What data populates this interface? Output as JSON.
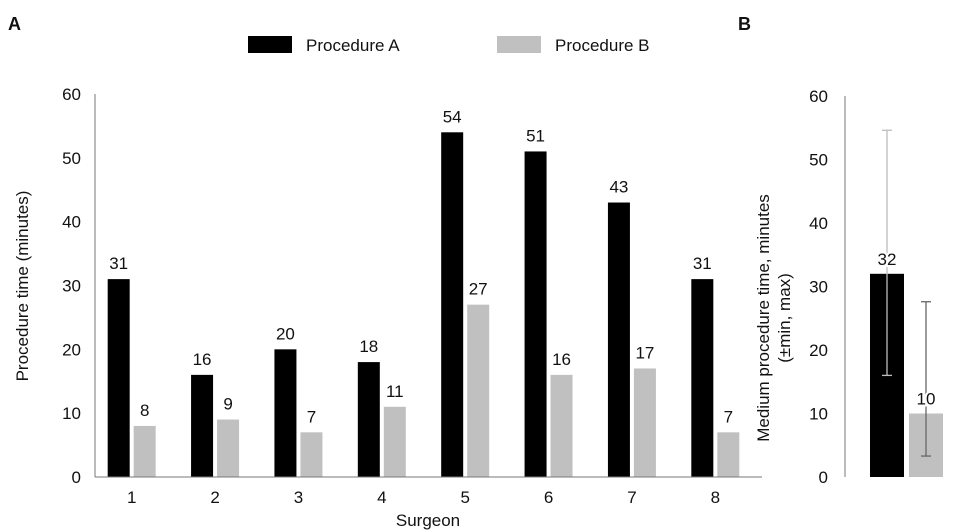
{
  "panels": [
    {
      "letter": "A",
      "chart_data": {
        "type": "bar",
        "categories": [
          "1",
          "2",
          "3",
          "4",
          "5",
          "6",
          "7",
          "8"
        ],
        "series": [
          {
            "name": "Procedure A",
            "values": [
              31,
              16,
              20,
              18,
              54,
              51,
              43,
              31
            ],
            "color": "#000000"
          },
          {
            "name": "Procedure B",
            "values": [
              8,
              9,
              7,
              11,
              27,
              16,
              17,
              7
            ],
            "color": "#c0c0c0"
          }
        ],
        "xlabel": "Surgeon",
        "ylabel": "Procedure time (minutes)",
        "ylim": [
          0,
          60
        ],
        "yticks": [
          0,
          10,
          20,
          30,
          40,
          50,
          60
        ],
        "grid": false,
        "legend": "top-center"
      }
    },
    {
      "letter": "B",
      "chart_data": {
        "type": "bar",
        "categories": [
          "Procedure A",
          "Procedure B"
        ],
        "values": [
          32,
          10
        ],
        "error_min": [
          16,
          3.3
        ],
        "error_max": [
          54.6,
          27.6
        ],
        "colors": [
          "#000000",
          "#c0c0c0"
        ],
        "ylabel_line1": "Medium procedure time, minutes",
        "ylabel_line2": "(±min, max)",
        "ylim": [
          0,
          60
        ],
        "yticks": [
          0,
          10,
          20,
          30,
          40,
          50,
          60
        ],
        "grid": false
      }
    }
  ]
}
